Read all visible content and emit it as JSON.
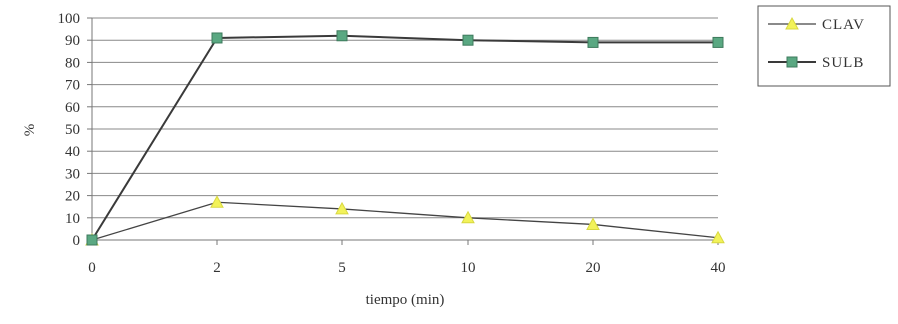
{
  "chart_data": {
    "type": "line",
    "title": "",
    "xlabel": "tiempo (min)",
    "ylabel": "%",
    "categories": [
      "0",
      "2",
      "5",
      "10",
      "20",
      "40"
    ],
    "ylim": [
      0,
      100
    ],
    "yticks": [
      "0",
      "10",
      "20",
      "30",
      "40",
      "50",
      "60",
      "70",
      "80",
      "90",
      "100"
    ],
    "grid": "horizontal",
    "legend": "right",
    "series": [
      {
        "name": "CLAV",
        "values": [
          0,
          17,
          14,
          10,
          7,
          1
        ],
        "marker_color": "#f2f25a",
        "line_color": "#444444",
        "marker": "triangle"
      },
      {
        "name": "SULB",
        "values": [
          0,
          91,
          92,
          90,
          89,
          89
        ],
        "marker_color": "#5aa882",
        "line_color": "#3a3a3a",
        "marker": "square"
      }
    ]
  }
}
